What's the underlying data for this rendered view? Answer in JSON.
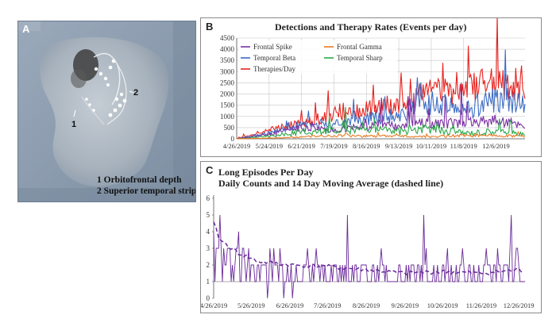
{
  "panel_a": {
    "letter": "A",
    "callout_1": "1",
    "callout_2": "2",
    "legend_line_1": "1 Orbitofrontal depth",
    "legend_line_2": "2 Superior temporal strip"
  },
  "panel_b": {
    "letter": "B",
    "title": "Detections and Therapy Rates (Events per day)"
  },
  "panel_c": {
    "letter": "C",
    "title_line_1": "Long Episodes Per Day",
    "title_line_2": "Daily Counts and 14 Day Moving Average (dashed line)"
  },
  "colors": {
    "frontal_spike": "#7b2fa3",
    "frontal_gamma": "#e87a22",
    "temporal_beta": "#3b6cc4",
    "temporal_sharp": "#2aa84a",
    "therapies": "#e8231f",
    "episodes": "#6a2a9a",
    "grid": "#c8c8c8"
  },
  "chart_data": [
    {
      "type": "line",
      "title": "Detections and Therapy Rates (Events per day)",
      "x_start": "4/26/2019",
      "x_end": "12/31/2019",
      "xticks": [
        "4/26/2019",
        "5/24/2019",
        "6/21/2019",
        "7/19/2019",
        "8/16/2019",
        "9/13/2019",
        "10/11/2019",
        "11/8/2019",
        "12/6/2019"
      ],
      "ylim": [
        0,
        4500
      ],
      "yticks": [
        0,
        500,
        1000,
        1500,
        2000,
        2500,
        3000,
        3500,
        4000,
        4500
      ],
      "grid": true,
      "legend_position": "top-left",
      "series": [
        {
          "name": "Frontal Spike",
          "color_key": "frontal_spike",
          "points": [
            [
              "4/26/2019",
              0
            ],
            [
              "5/24/2019",
              200
            ],
            [
              "6/21/2019",
              500
            ],
            [
              "7/19/2019",
              400
            ],
            [
              "8/16/2019",
              550
            ],
            [
              "9/13/2019",
              650
            ],
            [
              "10/11/2019",
              700
            ],
            [
              "11/8/2019",
              700
            ],
            [
              "12/6/2019",
              800
            ],
            [
              "12/31/2019",
              600
            ]
          ]
        },
        {
          "name": "Frontal Gamma",
          "color_key": "frontal_gamma",
          "points": [
            [
              "4/26/2019",
              0
            ],
            [
              "5/24/2019",
              30
            ],
            [
              "6/21/2019",
              80
            ],
            [
              "7/19/2019",
              150
            ],
            [
              "8/16/2019",
              120
            ],
            [
              "9/13/2019",
              120
            ],
            [
              "10/11/2019",
              100
            ],
            [
              "11/8/2019",
              150
            ],
            [
              "12/6/2019",
              150
            ],
            [
              "12/31/2019",
              120
            ]
          ]
        },
        {
          "name": "Temporal Beta",
          "color_key": "temporal_beta",
          "points": [
            [
              "4/26/2019",
              0
            ],
            [
              "5/24/2019",
              250
            ],
            [
              "6/21/2019",
              600
            ],
            [
              "7/19/2019",
              700
            ],
            [
              "8/16/2019",
              900
            ],
            [
              "9/13/2019",
              1100
            ],
            [
              "10/11/2019",
              1600
            ],
            [
              "11/8/2019",
              1300
            ],
            [
              "12/6/2019",
              1800
            ],
            [
              "12/31/2019",
              1500
            ]
          ]
        },
        {
          "name": "Temporal Sharp",
          "color_key": "temporal_sharp",
          "points": [
            [
              "4/26/2019",
              0
            ],
            [
              "5/24/2019",
              100
            ],
            [
              "6/21/2019",
              300
            ],
            [
              "7/19/2019",
              350
            ],
            [
              "8/16/2019",
              400
            ],
            [
              "9/13/2019",
              350
            ],
            [
              "10/11/2019",
              450
            ],
            [
              "11/8/2019",
              250
            ],
            [
              "12/6/2019",
              350
            ],
            [
              "12/31/2019",
              200
            ]
          ]
        },
        {
          "name": "Therapies/Day",
          "color_key": "therapies",
          "points": [
            [
              "4/26/2019",
              0
            ],
            [
              "5/24/2019",
              400
            ],
            [
              "6/21/2019",
              700
            ],
            [
              "7/19/2019",
              1100
            ],
            [
              "8/16/2019",
              1300
            ],
            [
              "9/13/2019",
              1600
            ],
            [
              "10/11/2019",
              2100
            ],
            [
              "11/8/2019",
              2200
            ],
            [
              "12/6/2019",
              2600
            ],
            [
              "12/31/2019",
              2100
            ]
          ]
        }
      ]
    },
    {
      "type": "line",
      "title": "Long Episodes Per Day",
      "subtitle": "Daily Counts and 14 Day Moving Average (dashed line)",
      "x_start": "4/26/2019",
      "x_end": "12/31/2019",
      "xticks": [
        "4/26/2019",
        "5/26/2019",
        "6/26/2019",
        "7/26/2019",
        "8/26/2019",
        "9/26/2019",
        "10/26/2019",
        "11/26/2019",
        "12/26/2019"
      ],
      "ylim": [
        0,
        6
      ],
      "yticks": [
        0,
        1,
        2,
        3,
        4,
        5,
        6
      ],
      "grid": false,
      "series": [
        {
          "name": "",
          "style": "solid",
          "color_key": "episodes",
          "points": [
            [
              "4/26/2019",
              4
            ],
            [
              "5/1/2019",
              5
            ],
            [
              "5/6/2019",
              2
            ],
            [
              "5/16/2019",
              4
            ],
            [
              "5/26/2019",
              2
            ],
            [
              "6/10/2019",
              3
            ],
            [
              "6/26/2019",
              1
            ],
            [
              "7/10/2019",
              3
            ],
            [
              "7/26/2019",
              1
            ],
            [
              "8/11/2019",
              5
            ],
            [
              "8/26/2019",
              2
            ],
            [
              "9/5/2019",
              1
            ],
            [
              "9/26/2019",
              1
            ],
            [
              "10/11/2019",
              5
            ],
            [
              "10/26/2019",
              2
            ],
            [
              "11/11/2019",
              3
            ],
            [
              "11/26/2019",
              1
            ],
            [
              "12/11/2019",
              2
            ],
            [
              "12/20/2019",
              5
            ],
            [
              "12/31/2019",
              1
            ]
          ]
        },
        {
          "name": "",
          "style": "dashed",
          "color_key": "episodes",
          "points": [
            [
              "4/26/2019",
              4.5
            ],
            [
              "5/1/2019",
              3.5
            ],
            [
              "5/16/2019",
              2.7
            ],
            [
              "6/1/2019",
              2.2
            ],
            [
              "6/26/2019",
              2.0
            ],
            [
              "7/26/2019",
              1.9
            ],
            [
              "8/26/2019",
              1.7
            ],
            [
              "9/26/2019",
              1.5
            ],
            [
              "10/26/2019",
              1.6
            ],
            [
              "11/26/2019",
              1.5
            ],
            [
              "12/26/2019",
              1.7
            ],
            [
              "12/31/2019",
              1.6
            ]
          ]
        }
      ]
    }
  ]
}
